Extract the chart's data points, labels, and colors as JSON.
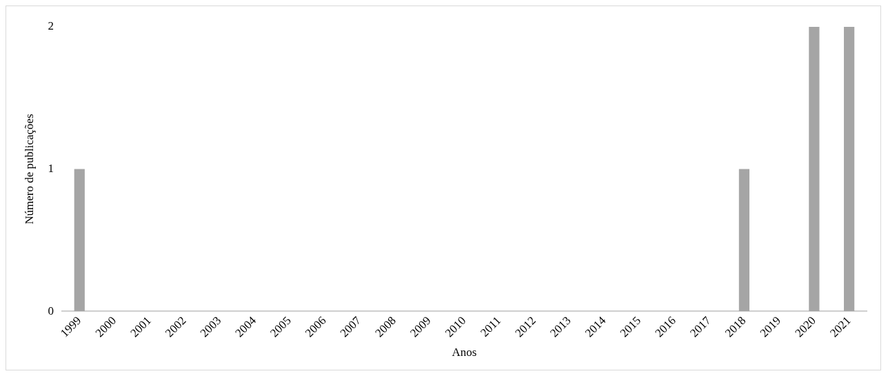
{
  "chart_data": {
    "type": "bar",
    "xlabel": "Anos",
    "ylabel": "Número de publicações",
    "categories": [
      "1999",
      "2000",
      "2001",
      "2002",
      "2003",
      "2004",
      "2005",
      "2006",
      "2007",
      "2008",
      "2009",
      "2010",
      "2011",
      "2012",
      "2013",
      "2014",
      "2015",
      "2016",
      "2017",
      "2018",
      "2019",
      "2020",
      "2021"
    ],
    "values": [
      1,
      0,
      0,
      0,
      0,
      0,
      0,
      0,
      0,
      0,
      0,
      0,
      0,
      0,
      0,
      0,
      0,
      0,
      0,
      1,
      0,
      2,
      2
    ],
    "color": "#a5a5a5",
    "ylim": [
      0,
      2
    ],
    "yticks": [
      0,
      1,
      2
    ],
    "grid": false,
    "legend": false
  }
}
